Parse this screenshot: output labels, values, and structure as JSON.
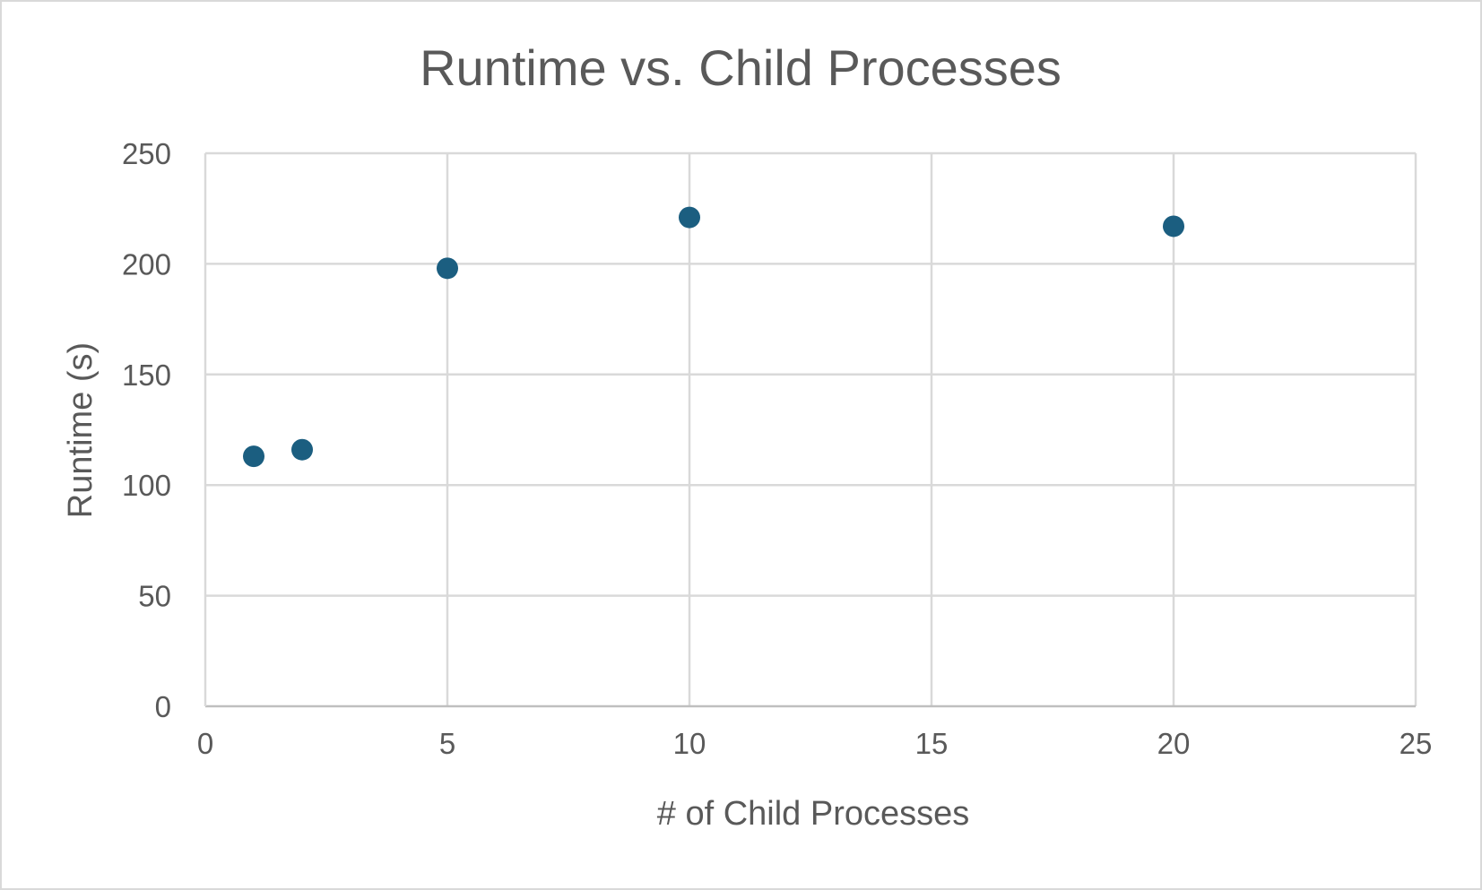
{
  "chart_data": {
    "type": "scatter",
    "title": "Runtime vs. Child Processes",
    "xlabel": "# of Child Processes",
    "ylabel": "Runtime (s)",
    "xlim": [
      0,
      25
    ],
    "ylim": [
      0,
      250
    ],
    "xticks": [
      "0",
      "5",
      "10",
      "15",
      "20",
      "25"
    ],
    "yticks": [
      "0",
      "50",
      "100",
      "150",
      "200",
      "250"
    ],
    "grid": true,
    "legend": "none",
    "series": [
      {
        "color": "#1b5e80",
        "points": [
          {
            "x": 1,
            "y": 113
          },
          {
            "x": 2,
            "y": 116
          },
          {
            "x": 5,
            "y": 198
          },
          {
            "x": 10,
            "y": 221
          },
          {
            "x": 20,
            "y": 217
          }
        ]
      }
    ]
  }
}
